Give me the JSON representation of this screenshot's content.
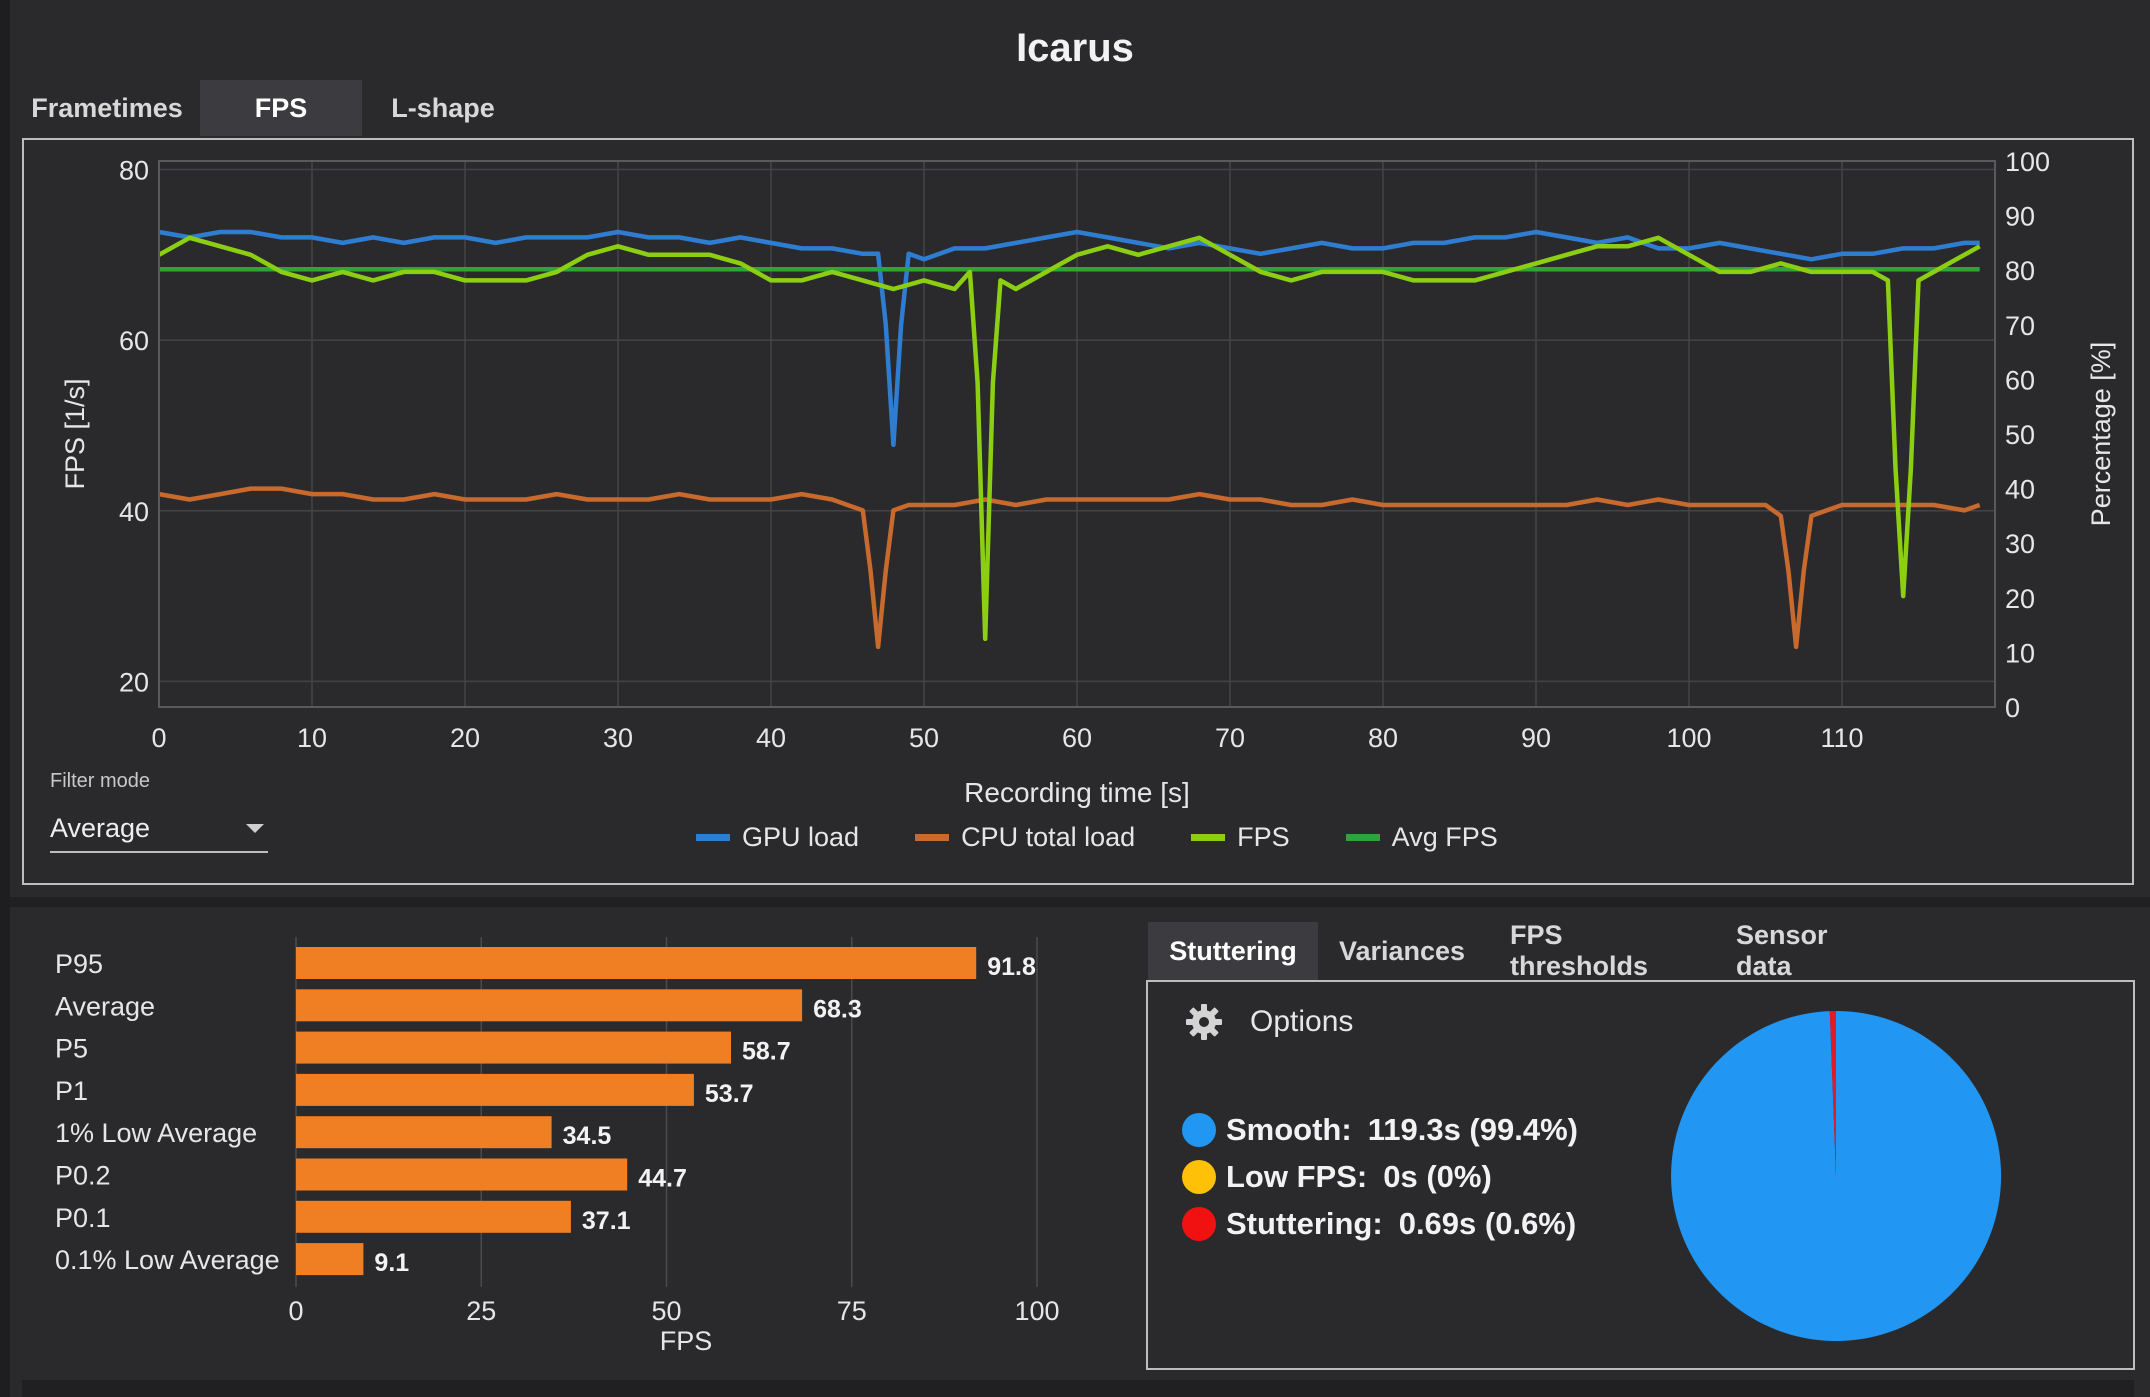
{
  "title": "Icarus",
  "top_tabs": [
    {
      "label": "Frametimes",
      "active": false
    },
    {
      "label": "FPS",
      "active": true
    },
    {
      "label": "L-shape",
      "active": false
    }
  ],
  "filter": {
    "label": "Filter mode",
    "value": "Average"
  },
  "bottom_tabs": [
    {
      "label": "Stuttering",
      "active": true
    },
    {
      "label": "Variances",
      "active": false
    },
    {
      "label": "FPS thresholds",
      "active": false
    },
    {
      "label": "Sensor data",
      "active": false
    }
  ],
  "options": {
    "label": "Options",
    "icon": "gear-icon"
  },
  "stutter_stats": [
    {
      "label": "Smooth:",
      "value": "119.3s (99.4%)",
      "color": "#2196f3"
    },
    {
      "label": "Low FPS:",
      "value": "0s (0%)",
      "color": "#ffc107"
    },
    {
      "label": "Stuttering:",
      "value": "0.69s (0.6%)",
      "color": "#f21111"
    }
  ],
  "chart_data": [
    {
      "type": "line",
      "xlabel": "Recording time [s]",
      "ylabel": "FPS [1/s]",
      "ylabel_right": "Percentage [%]",
      "xlim": [
        0,
        120
      ],
      "ylim": [
        17,
        81
      ],
      "ylim_right": [
        0,
        100
      ],
      "x_ticks": [
        0,
        10,
        20,
        30,
        40,
        50,
        60,
        70,
        80,
        90,
        100,
        110
      ],
      "y_ticks": [
        20,
        40,
        60,
        80
      ],
      "y_ticks_right": [
        0,
        10,
        20,
        30,
        40,
        50,
        60,
        70,
        80,
        90,
        100
      ],
      "grid": true,
      "legend": "bottom",
      "series": [
        {
          "name": "GPU load",
          "axis": "right",
          "color": "#2e7dd1",
          "x": [
            0,
            2,
            4,
            6,
            8,
            10,
            12,
            14,
            16,
            18,
            20,
            22,
            24,
            26,
            28,
            30,
            32,
            34,
            36,
            38,
            40,
            42,
            44,
            46,
            47,
            47.5,
            48,
            48.5,
            49,
            50,
            52,
            54,
            56,
            58,
            60,
            62,
            64,
            66,
            68,
            70,
            72,
            74,
            76,
            78,
            80,
            82,
            84,
            86,
            88,
            90,
            92,
            94,
            96,
            98,
            100,
            102,
            104,
            106,
            108,
            110,
            112,
            114,
            116,
            118,
            119
          ],
          "y": [
            87,
            86,
            87,
            87,
            86,
            86,
            85,
            86,
            85,
            86,
            86,
            85,
            86,
            86,
            86,
            87,
            86,
            86,
            85,
            86,
            85,
            84,
            84,
            83,
            83,
            70,
            48,
            70,
            83,
            82,
            84,
            84,
            85,
            86,
            87,
            86,
            85,
            84,
            85,
            84,
            83,
            84,
            85,
            84,
            84,
            85,
            85,
            86,
            86,
            87,
            86,
            85,
            86,
            84,
            84,
            85,
            84,
            83,
            82,
            83,
            83,
            84,
            84,
            85,
            85
          ]
        },
        {
          "name": "CPU total load",
          "axis": "right",
          "color": "#c8692d",
          "x": [
            0,
            2,
            4,
            6,
            8,
            10,
            12,
            14,
            16,
            18,
            20,
            22,
            24,
            26,
            28,
            30,
            32,
            34,
            36,
            38,
            40,
            42,
            44,
            45,
            46,
            46.5,
            47,
            47.5,
            48,
            49,
            50,
            52,
            54,
            56,
            58,
            60,
            62,
            64,
            66,
            68,
            70,
            72,
            74,
            76,
            78,
            80,
            82,
            84,
            86,
            88,
            90,
            92,
            94,
            96,
            98,
            100,
            102,
            104,
            105,
            106,
            106.5,
            107,
            107.5,
            108,
            109,
            110,
            112,
            114,
            116,
            118,
            119
          ],
          "y": [
            39,
            38,
            39,
            40,
            40,
            39,
            39,
            38,
            38,
            39,
            38,
            38,
            38,
            39,
            38,
            38,
            38,
            39,
            38,
            38,
            38,
            39,
            38,
            37,
            36,
            25,
            11,
            25,
            36,
            37,
            37,
            37,
            38,
            37,
            38,
            38,
            38,
            38,
            38,
            39,
            38,
            38,
            37,
            37,
            38,
            37,
            37,
            37,
            37,
            37,
            37,
            37,
            38,
            37,
            38,
            37,
            37,
            37,
            37,
            35,
            25,
            11,
            25,
            35,
            36,
            37,
            37,
            37,
            37,
            36,
            37
          ]
        },
        {
          "name": "FPS",
          "axis": "left",
          "color": "#8ccf12",
          "x": [
            0,
            2,
            4,
            6,
            8,
            10,
            12,
            14,
            16,
            18,
            20,
            22,
            24,
            26,
            28,
            30,
            32,
            34,
            36,
            38,
            40,
            42,
            44,
            46,
            48,
            50,
            52,
            53,
            53.5,
            54,
            54.5,
            55,
            56,
            58,
            60,
            62,
            64,
            66,
            68,
            70,
            72,
            74,
            76,
            78,
            80,
            82,
            84,
            86,
            88,
            90,
            92,
            94,
            96,
            98,
            100,
            102,
            104,
            106,
            108,
            110,
            112,
            113,
            113.5,
            114,
            114.5,
            115,
            116,
            118,
            119
          ],
          "y": [
            70,
            72,
            71,
            70,
            68,
            67,
            68,
            67,
            68,
            68,
            67,
            67,
            67,
            68,
            70,
            71,
            70,
            70,
            70,
            69,
            67,
            67,
            68,
            67,
            66,
            67,
            66,
            68,
            55,
            25,
            55,
            67,
            66,
            68,
            70,
            71,
            70,
            71,
            72,
            70,
            68,
            67,
            68,
            68,
            68,
            67,
            67,
            67,
            68,
            69,
            70,
            71,
            71,
            72,
            70,
            68,
            68,
            69,
            68,
            68,
            68,
            67,
            45,
            30,
            45,
            67,
            68,
            70,
            71
          ]
        },
        {
          "name": "Avg FPS",
          "axis": "left",
          "color": "#2fa43a",
          "x": [
            0,
            119
          ],
          "y": [
            68.3,
            68.3
          ]
        }
      ]
    },
    {
      "type": "bar",
      "orientation": "horizontal",
      "xlabel": "FPS",
      "xlim": [
        0,
        105
      ],
      "x_ticks": [
        0,
        25,
        50,
        75,
        100
      ],
      "grid": true,
      "color": "#f07e22",
      "categories": [
        "P95",
        "Average",
        "P5",
        "P1",
        "1% Low Average",
        "P0.2",
        "P0.1",
        "0.1% Low Average"
      ],
      "values": [
        91.8,
        68.3,
        58.7,
        53.7,
        34.5,
        44.7,
        37.1,
        9.1
      ]
    },
    {
      "type": "pie",
      "categories": [
        "Smooth",
        "Low FPS",
        "Stuttering"
      ],
      "values": [
        99.4,
        0,
        0.6
      ],
      "colors": [
        "#2196f3",
        "#ffc107",
        "#e01c24"
      ]
    }
  ]
}
